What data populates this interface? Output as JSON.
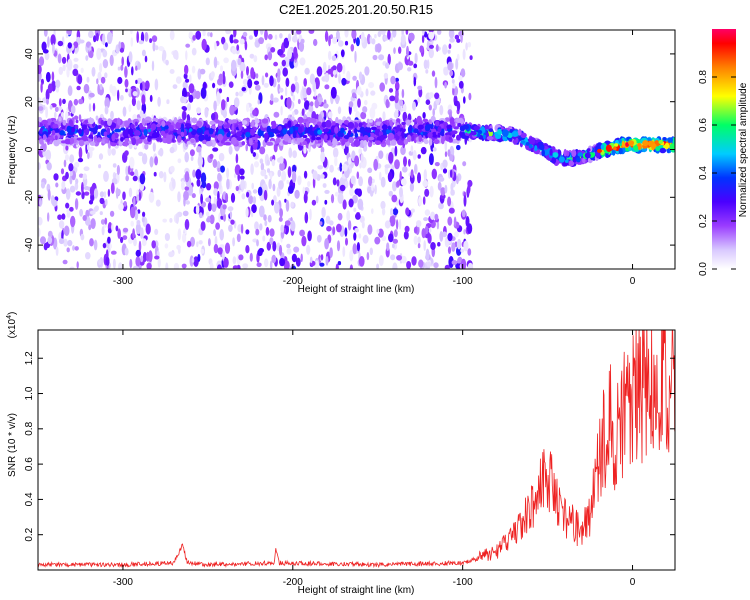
{
  "title": "C2E1.2025.201.20.50.R15",
  "chart_data": [
    {
      "type": "heatmap",
      "xlabel": "Height of straight line (km)",
      "ylabel": "Frequency (Hz)",
      "xlim": [
        -350,
        25
      ],
      "ylim": [
        -50,
        50
      ],
      "xticks": [
        -300,
        -200,
        -100,
        0
      ],
      "yticks": [
        -40,
        -20,
        0,
        20,
        40
      ],
      "colorbar": {
        "label": "Normalized spectral amplitude",
        "ticks": [
          0.0,
          0.2,
          0.4,
          0.6,
          0.8
        ],
        "tick_labels": [
          "0.0",
          "0.2",
          "0.4",
          "0.6",
          "0.8"
        ],
        "range": [
          0,
          1
        ],
        "colormap": [
          "#ffffff",
          "#d8c8ff",
          "#9a3cff",
          "#4a00ff",
          "#0033ff",
          "#00ccff",
          "#00ff66",
          "#ffff00",
          "#ff8000",
          "#ff0000",
          "#ff0066"
        ]
      },
      "ridge": {
        "x": [
          -350,
          -300,
          -280,
          -250,
          -220,
          -200,
          -180,
          -150,
          -120,
          -100,
          -85,
          -70,
          -55,
          -45,
          -35,
          -25,
          -15,
          -5,
          5,
          15,
          25
        ],
        "y": [
          8,
          7,
          8,
          7,
          7,
          8,
          7,
          7,
          8,
          8,
          7,
          6,
          1,
          -3,
          -4,
          -2,
          0,
          2,
          2,
          2,
          2
        ]
      },
      "vertical_streaks_x": [
        -345,
        -330,
        -310,
        -290,
        -255,
        -240,
        -220,
        -200,
        -180,
        -170,
        -160,
        -140,
        -120,
        -105
      ]
    },
    {
      "type": "line",
      "xlabel": "Height of straight line (km)",
      "ylabel": "SNR (10 * v/v)",
      "multiplier": "(x10⁴)",
      "xlim": [
        -350,
        25
      ],
      "ylim": [
        0,
        1.36
      ],
      "xticks": [
        -300,
        -200,
        -100,
        0
      ],
      "yticks": [
        0.2,
        0.4,
        0.6,
        0.8,
        1.0,
        1.2
      ],
      "ytick_labels": [
        "0.2",
        "0.4",
        "0.6",
        "0.8",
        "1.0",
        "1.2"
      ],
      "series": [
        {
          "color": "#ee2222",
          "x": [
            -350,
            -300,
            -270,
            -265,
            -262,
            -250,
            -211,
            -210,
            -208,
            -150,
            -100,
            -90,
            -80,
            -75,
            -70,
            -65,
            -60,
            -55,
            -50,
            -45,
            -40,
            -35,
            -30,
            -25,
            -20,
            -15,
            -10,
            -5,
            0,
            5,
            10,
            15,
            20,
            25
          ],
          "y": [
            0.03,
            0.03,
            0.04,
            0.14,
            0.04,
            0.03,
            0.04,
            0.12,
            0.04,
            0.03,
            0.04,
            0.07,
            0.1,
            0.14,
            0.2,
            0.28,
            0.35,
            0.42,
            0.5,
            0.4,
            0.3,
            0.25,
            0.2,
            0.3,
            0.55,
            0.8,
            0.75,
            0.85,
            0.9,
            1.0,
            1.1,
            1.15,
            1.05,
            1.1
          ]
        }
      ]
    }
  ]
}
